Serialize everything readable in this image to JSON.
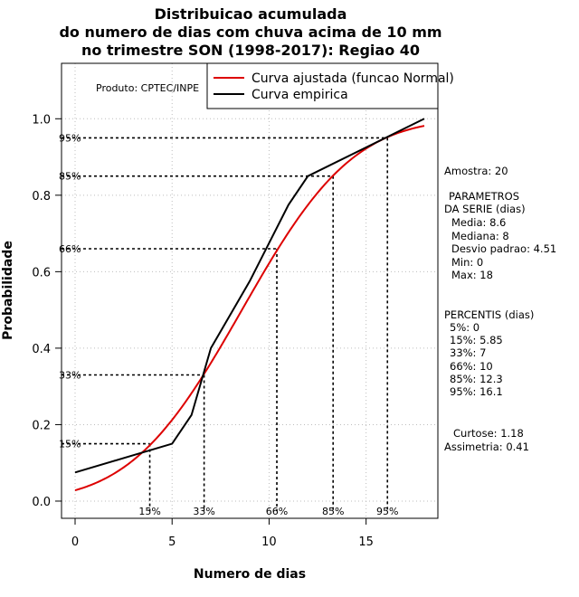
{
  "chart_data": {
    "type": "line",
    "title": [
      "Distribuicao acumulada",
      "do numero de dias com chuva acima de 10 mm",
      "no trimestre SON (1998-2017): Regiao 40"
    ],
    "xlabel": "Numero de dias",
    "ylabel": "Probabilidade",
    "xlim": [
      -0.7,
      18.7
    ],
    "ylim": [
      -0.045,
      1.145
    ],
    "xticks": [
      "0",
      "5",
      "10",
      "15"
    ],
    "xtick_values": [
      0,
      5,
      10,
      15
    ],
    "yticks": [
      "0.0",
      "0.2",
      "0.4",
      "0.6",
      "0.8",
      "1.0"
    ],
    "ytick_values": [
      0,
      0.2,
      0.4,
      0.6,
      0.8,
      1.0
    ],
    "grid": true,
    "credit": "Produto: CPTEC/INPE",
    "legend": {
      "position": "top-right",
      "entries": [
        {
          "label": "Curva ajustada (funcao Normal)",
          "color": "#dd0000"
        },
        {
          "label": "Curva empirica",
          "color": "#000000"
        }
      ]
    },
    "series": [
      {
        "name": "Curva ajustada (funcao Normal)",
        "color": "#dd0000",
        "normal_mean": 8.6,
        "normal_sd": 4.51,
        "x_range": [
          0,
          18
        ]
      },
      {
        "name": "Curva empirica",
        "color": "#000000",
        "x": [
          0,
          5,
          6,
          7,
          9,
          11,
          12,
          18
        ],
        "y": [
          0.075,
          0.15,
          0.225,
          0.4,
          0.575,
          0.775,
          0.85,
          1.0
        ]
      }
    ],
    "percentile_markers": [
      {
        "label": "15%",
        "p": 0.15,
        "x": 3.85
      },
      {
        "label": "33%",
        "p": 0.33,
        "x": 6.65
      },
      {
        "label": "66%",
        "p": 0.66,
        "x": 10.4
      },
      {
        "label": "85%",
        "p": 0.85,
        "x": 13.3
      },
      {
        "label": "95%",
        "p": 0.95,
        "x": 16.1
      }
    ],
    "side_panel": {
      "amostra": "Amostra: 20",
      "param_title_1": "PARAMETROS",
      "param_title_2": "DA SERIE (dias)",
      "params": [
        "Media: 8.6",
        "Mediana: 8",
        "Desvio padrao: 4.51",
        "Min: 0",
        "Max: 18"
      ],
      "percentis_title": "PERCENTIS (dias)",
      "percentis": [
        "5%: 0",
        "15%: 5.85",
        "33%: 7",
        "66%: 10",
        "85%: 12.3",
        "95%: 16.1"
      ],
      "curtose": "Curtose: 1.18",
      "assimetria": "Assimetria: 0.41"
    }
  }
}
